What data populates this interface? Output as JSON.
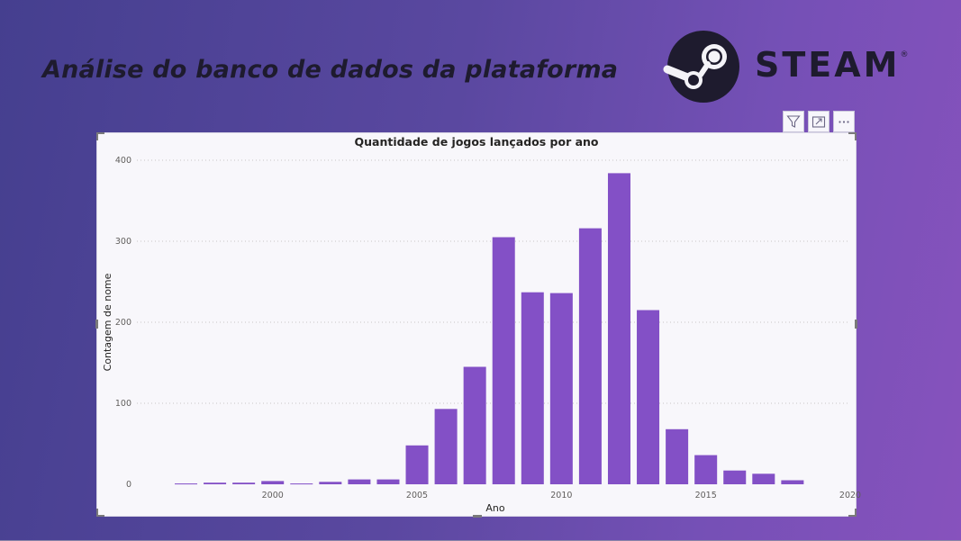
{
  "header": {
    "title": "Análise do banco de dados da plataforma",
    "brand_name": "STEAM",
    "brand_mark": "®"
  },
  "toolbar": {
    "icons": [
      "filter-icon",
      "focus-mode-icon",
      "more-options-icon"
    ]
  },
  "colors": {
    "bar": "#8350c6",
    "title": "#1e1b2e",
    "background_start": "#453f8f",
    "background_end": "#8752bd"
  },
  "chart_data": {
    "type": "bar",
    "title": "Quantidade de jogos lançados por ano",
    "xlabel": "Ano",
    "ylabel": "Contagem de nome",
    "x": [
      1997,
      1998,
      1999,
      2000,
      2001,
      2002,
      2003,
      2004,
      2005,
      2006,
      2007,
      2008,
      2009,
      2010,
      2011,
      2012,
      2013,
      2014,
      2015,
      2016,
      2017,
      2018,
      2019
    ],
    "values": [
      1,
      2,
      2,
      4,
      1,
      3,
      6,
      6,
      48,
      93,
      145,
      305,
      237,
      236,
      316,
      384,
      215,
      68,
      36,
      17,
      13,
      5,
      0
    ],
    "xlim": [
      1995.3,
      2020
    ],
    "ylim": [
      0,
      400
    ],
    "xticks": [
      "2000",
      "2005",
      "2010",
      "2015",
      "2020"
    ],
    "yticks": [
      "0",
      "100",
      "200",
      "300",
      "400"
    ],
    "grid": true,
    "legend": "none"
  }
}
